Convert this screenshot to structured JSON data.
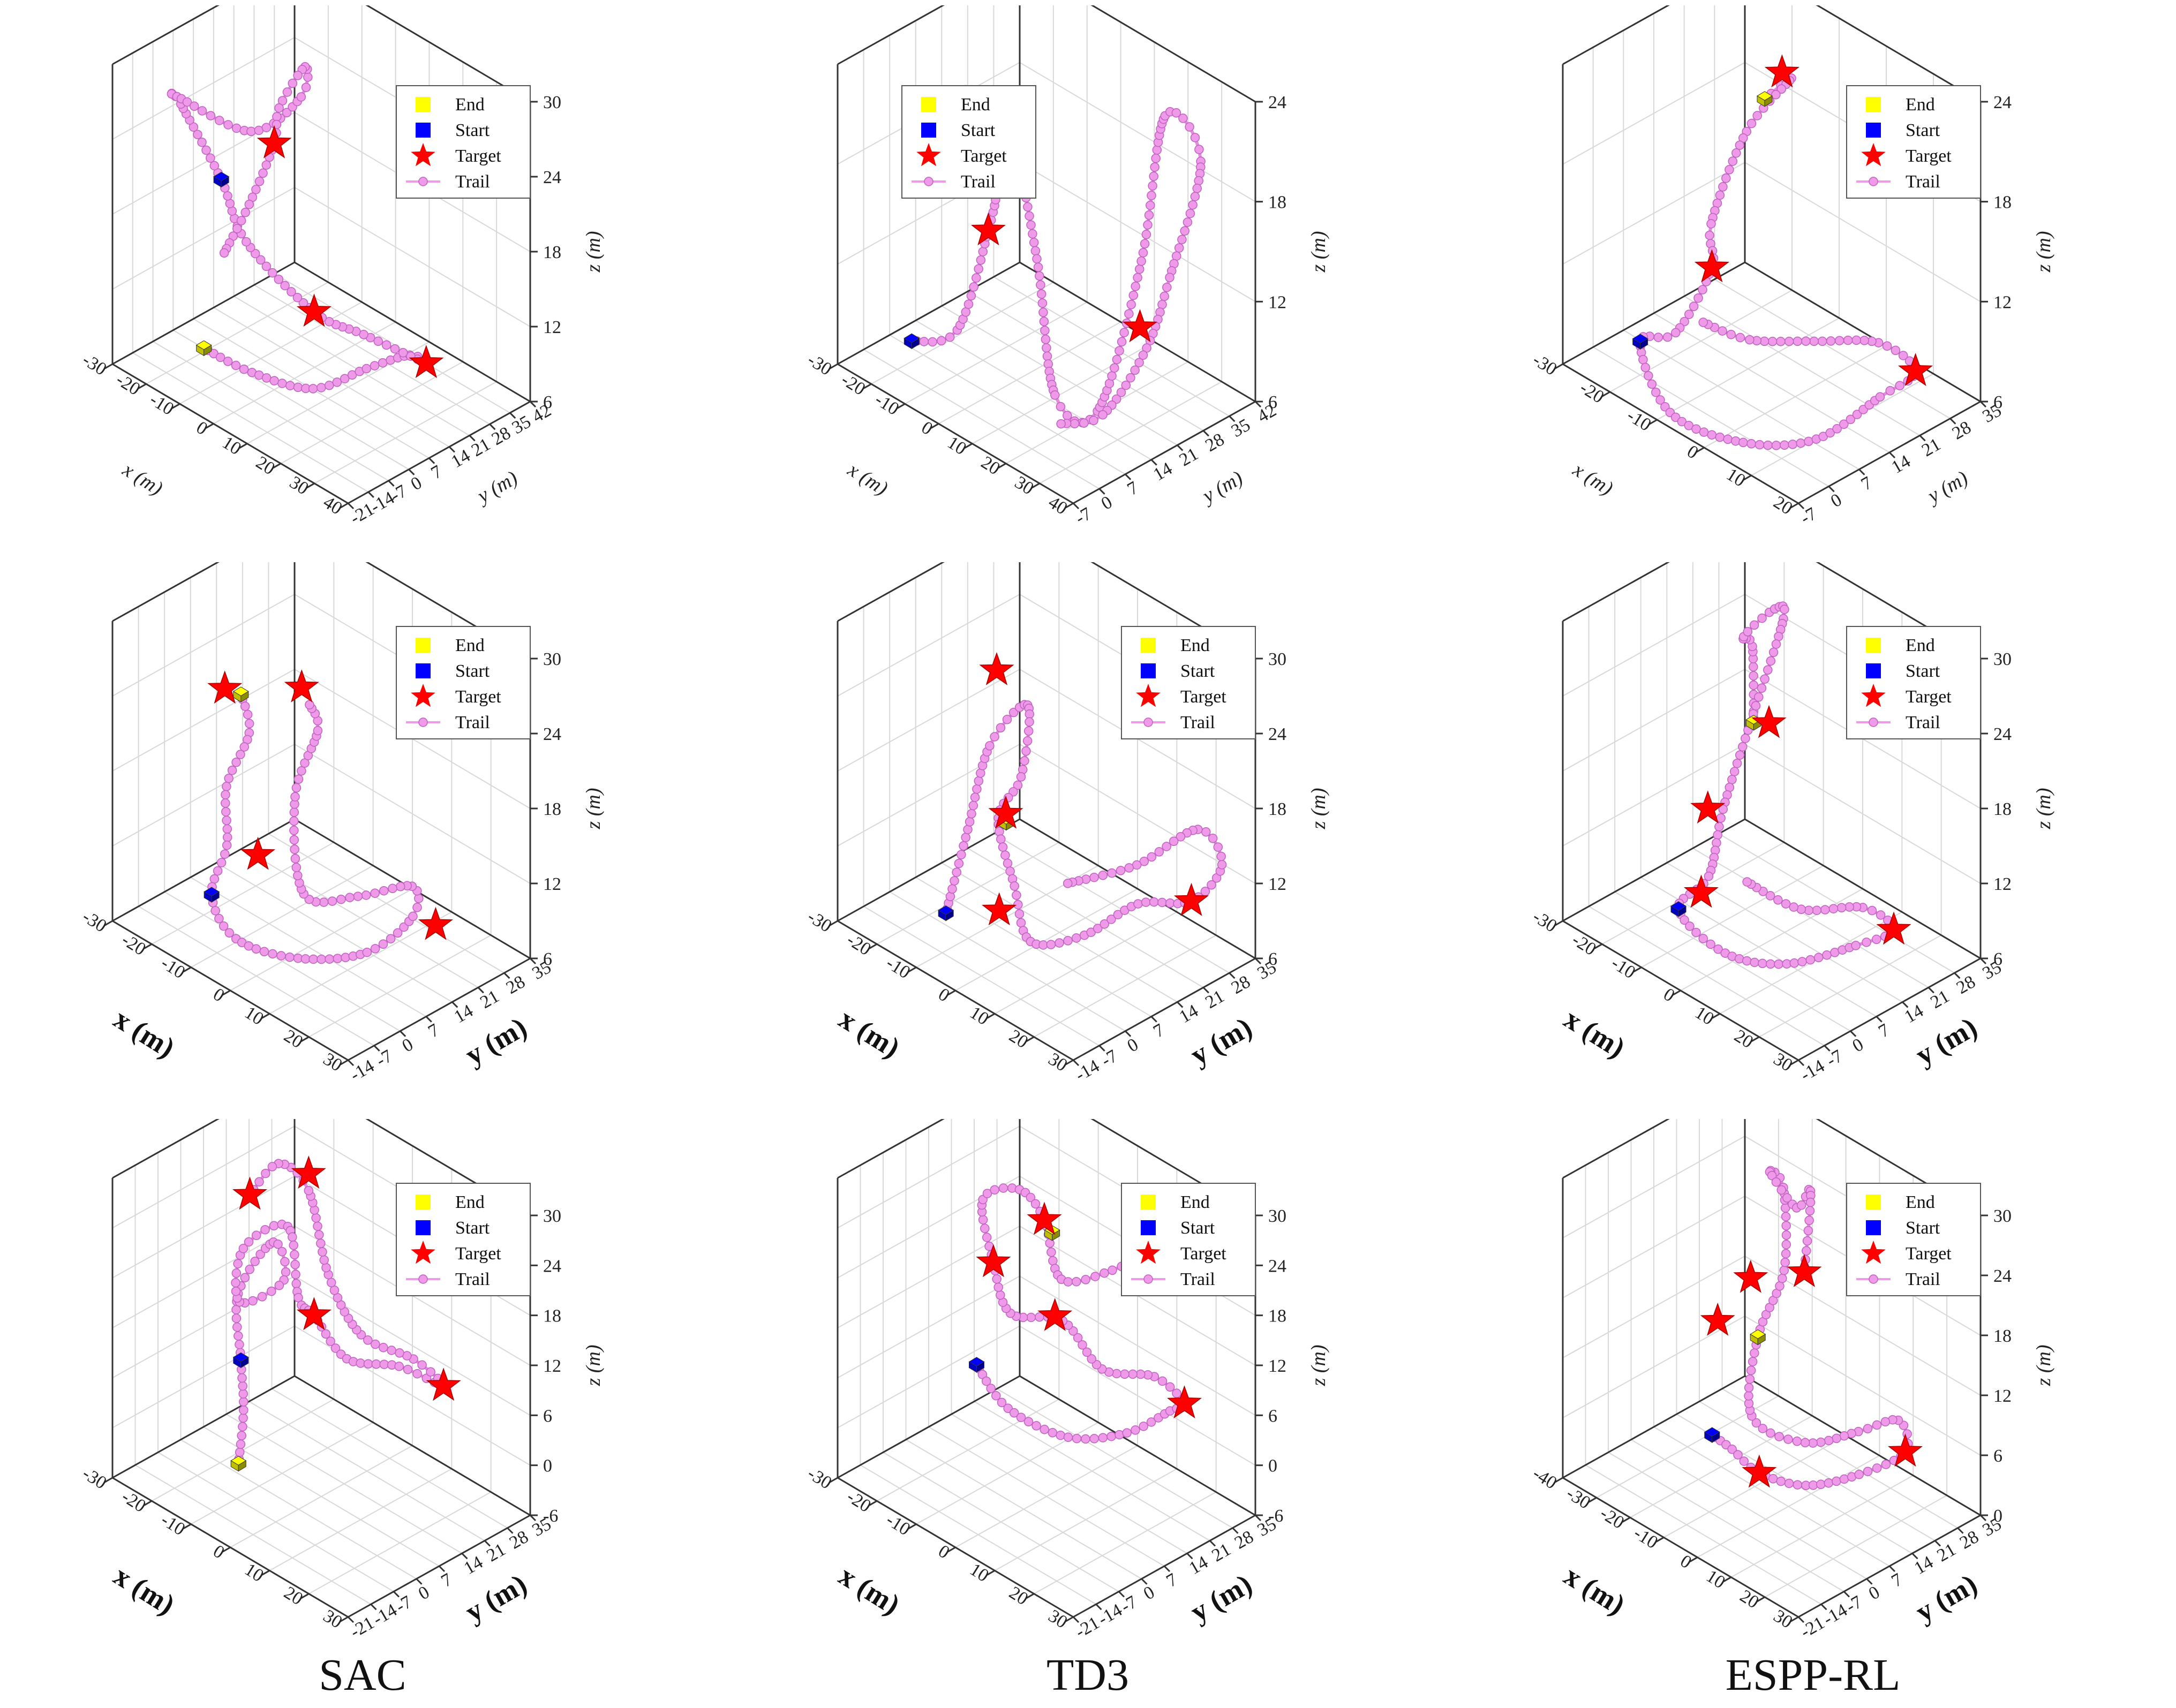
{
  "colors": {
    "trail": "#ee9ae8",
    "target": "#ff0000",
    "start": "#0000ff",
    "end": "#ffff00",
    "axis": "#333333",
    "grid": "#d8d8d8"
  },
  "legend": {
    "end": "End",
    "start": "Start",
    "target": "Target",
    "trail": "Trail"
  },
  "column_labels": [
    "SAC",
    "TD3",
    "ESPP-RL"
  ],
  "chart_data": [
    {
      "type": "scatter3d",
      "row": 0,
      "col": 0,
      "xlabel": "x (m)",
      "ylabel": "y (m)",
      "zlabel": "z (m)",
      "xticks": [
        "-30",
        "-20",
        "-10",
        "0",
        "10",
        "20",
        "30",
        "40"
      ],
      "yticks": [
        "-21",
        "-14",
        "-7",
        "0",
        "7",
        "14",
        "21",
        "28",
        "35",
        "42"
      ],
      "zticks": [
        "6",
        "12",
        "18",
        "24",
        "30"
      ],
      "xlim": [
        -30,
        40
      ],
      "ylim": [
        -21,
        42
      ],
      "zlim": [
        6,
        30
      ],
      "start": [
        -20,
        5,
        19
      ],
      "end": [
        -8,
        -15,
        10
      ],
      "targets": [
        [
          -12,
          14,
          22
        ],
        [
          5,
          8,
          12
        ],
        [
          28,
          20,
          10
        ]
      ],
      "trail": [
        [
          -8,
          -15,
          10
        ],
        [
          2,
          -10,
          9
        ],
        [
          15,
          -4,
          9
        ],
        [
          24,
          4,
          11
        ],
        [
          30,
          12,
          12
        ],
        [
          28,
          20,
          10
        ],
        [
          18,
          10,
          12
        ],
        [
          5,
          8,
          12
        ],
        [
          -10,
          2,
          16
        ],
        [
          -20,
          5,
          19
        ],
        [
          -26,
          -2,
          25
        ],
        [
          -22,
          -8,
          27
        ],
        [
          -12,
          6,
          24
        ],
        [
          -4,
          14,
          27
        ],
        [
          -8,
          20,
          28
        ],
        [
          -14,
          18,
          24
        ],
        [
          -12,
          14,
          22
        ],
        [
          -16,
          10,
          17
        ],
        [
          -20,
          6,
          13
        ]
      ],
      "legend_position": "top-right"
    },
    {
      "type": "scatter3d",
      "row": 0,
      "col": 1,
      "xlabel": "x (m)",
      "ylabel": "y (m)",
      "zlabel": "z (m)",
      "xticks": [
        "-30",
        "-20",
        "-10",
        "0",
        "10",
        "20",
        "30",
        "40"
      ],
      "yticks": [
        "-7",
        "0",
        "7",
        "14",
        "21",
        "28",
        "35",
        "42"
      ],
      "zticks": [
        "6",
        "12",
        "18",
        "24"
      ],
      "xlim": [
        -30,
        40
      ],
      "ylim": [
        -7,
        42
      ],
      "zlim": [
        6,
        24
      ],
      "start": [
        -8,
        -7,
        10
      ],
      "end": [
        -10,
        18,
        16
      ],
      "targets": [
        [
          -12,
          22,
          19
        ],
        [
          -4,
          10,
          15
        ],
        [
          30,
          20,
          12
        ]
      ],
      "trail": [
        [
          -8,
          -7,
          10
        ],
        [
          0,
          -2,
          11
        ],
        [
          -4,
          10,
          15
        ],
        [
          -10,
          18,
          16
        ],
        [
          -12,
          22,
          19
        ],
        [
          -18,
          16,
          21
        ],
        [
          -10,
          20,
          20
        ],
        [
          6,
          14,
          14
        ],
        [
          18,
          8,
          8
        ],
        [
          24,
          14,
          7
        ],
        [
          26,
          24,
          15
        ],
        [
          22,
          34,
          22
        ],
        [
          26,
          40,
          19
        ],
        [
          30,
          28,
          14
        ],
        [
          32,
          20,
          11
        ],
        [
          30,
          10,
          8
        ],
        [
          22,
          6,
          7
        ]
      ],
      "legend_position": "top-left"
    },
    {
      "type": "scatter3d",
      "row": 0,
      "col": 2,
      "xlabel": "x (m)",
      "ylabel": "y (m)",
      "zlabel": "z (m)",
      "xticks": [
        "-30",
        "-20",
        "-10",
        "0",
        "10",
        "20"
      ],
      "yticks": [
        "-7",
        "0",
        "7",
        "14",
        "21",
        "28",
        "35"
      ],
      "zticks": [
        "6",
        "12",
        "18",
        "24"
      ],
      "xlim": [
        -30,
        20
      ],
      "ylim": [
        -7,
        35
      ],
      "zlim": [
        6,
        24
      ],
      "start": [
        -20,
        0,
        8
      ],
      "end": [
        -12,
        20,
        21
      ],
      "targets": [
        [
          -12,
          24,
          22
        ],
        [
          -14,
          10,
          12
        ],
        [
          20,
          20,
          10
        ]
      ],
      "trail": [
        [
          -12,
          20,
          21
        ],
        [
          -10,
          24,
          22
        ],
        [
          -14,
          18,
          19
        ],
        [
          -16,
          12,
          14
        ],
        [
          -14,
          10,
          12
        ],
        [
          -18,
          6,
          8
        ],
        [
          -20,
          0,
          8
        ],
        [
          -10,
          -4,
          6
        ],
        [
          0,
          2,
          5
        ],
        [
          10,
          8,
          6
        ],
        [
          18,
          14,
          9
        ],
        [
          20,
          20,
          10
        ],
        [
          14,
          18,
          11
        ],
        [
          4,
          14,
          10
        ],
        [
          -6,
          10,
          9
        ],
        [
          -14,
          8,
          9
        ]
      ],
      "legend_position": "top-right"
    },
    {
      "type": "scatter3d",
      "row": 1,
      "col": 0,
      "xlabel": "x (m)",
      "ylabel": "y (m)",
      "zlabel": "z (m)",
      "xticks": [
        "-30",
        "-20",
        "-10",
        "0",
        "10",
        "20",
        "30"
      ],
      "yticks": [
        "-14",
        "-7",
        "0",
        "7",
        "14",
        "21",
        "28",
        "35"
      ],
      "zticks": [
        "6",
        "12",
        "18",
        "24",
        "30"
      ],
      "xlim": [
        -30,
        30
      ],
      "ylim": [
        -14,
        35
      ],
      "zlim": [
        6,
        30
      ],
      "start": [
        -18,
        0,
        8
      ],
      "end": [
        -20,
        10,
        22
      ],
      "targets": [
        [
          -26,
          12,
          21
        ],
        [
          -14,
          20,
          22
        ],
        [
          -10,
          4,
          12
        ],
        [
          22,
          18,
          10
        ]
      ],
      "trail": [
        [
          -20,
          10,
          22
        ],
        [
          -16,
          8,
          20
        ],
        [
          -18,
          4,
          16
        ],
        [
          -16,
          2,
          12
        ],
        [
          -18,
          0,
          8
        ],
        [
          -8,
          -4,
          7
        ],
        [
          4,
          0,
          7
        ],
        [
          14,
          8,
          8
        ],
        [
          20,
          14,
          11
        ],
        [
          16,
          18,
          12
        ],
        [
          6,
          14,
          10
        ],
        [
          -4,
          10,
          9
        ],
        [
          -10,
          14,
          15
        ],
        [
          -8,
          18,
          20
        ],
        [
          -12,
          20,
          21
        ]
      ],
      "legend_position": "top-right"
    },
    {
      "type": "scatter3d",
      "row": 1,
      "col": 1,
      "xlabel": "x (m)",
      "ylabel": "y (m)",
      "zlabel": "z (m)",
      "xticks": [
        "-30",
        "-20",
        "-10",
        "0",
        "10",
        "20",
        "30"
      ],
      "yticks": [
        "-14",
        "-7",
        "0",
        "7",
        "14",
        "21",
        "28",
        "35"
      ],
      "zticks": [
        "6",
        "12",
        "18",
        "24",
        "30"
      ],
      "xlim": [
        -30,
        30
      ],
      "ylim": [
        -14,
        35
      ],
      "zlim": [
        6,
        30
      ],
      "start": [
        -10,
        -6,
        9
      ],
      "end": [
        -6,
        6,
        15
      ],
      "targets": [
        [
          -16,
          14,
          24
        ],
        [
          -8,
          8,
          15
        ],
        [
          -4,
          2,
          9
        ],
        [
          26,
          22,
          12
        ]
      ],
      "trail": [
        [
          -10,
          -6,
          9
        ],
        [
          -12,
          2,
          14
        ],
        [
          -14,
          10,
          19
        ],
        [
          -10,
          16,
          22
        ],
        [
          -6,
          10,
          18
        ],
        [
          -8,
          6,
          15
        ],
        [
          -2,
          4,
          11
        ],
        [
          4,
          2,
          8
        ],
        [
          12,
          8,
          9
        ],
        [
          20,
          14,
          12
        ],
        [
          26,
          22,
          12
        ],
        [
          30,
          26,
          15
        ],
        [
          22,
          28,
          16
        ],
        [
          14,
          20,
          13
        ],
        [
          4,
          12,
          11
        ]
      ],
      "legend_position": "top-right"
    },
    {
      "type": "scatter3d",
      "row": 1,
      "col": 2,
      "xlabel": "x (m)",
      "ylabel": "y (m)",
      "zlabel": "z (m)",
      "xticks": [
        "-30",
        "-20",
        "-10",
        "0",
        "10",
        "20",
        "30"
      ],
      "yticks": [
        "-14",
        "-7",
        "0",
        "7",
        "14",
        "21",
        "28",
        "35"
      ],
      "zticks": [
        "6",
        "12",
        "18",
        "24",
        "30"
      ],
      "xlim": [
        -30,
        30
      ],
      "ylim": [
        -14,
        35
      ],
      "zlim": [
        6,
        30
      ],
      "start": [
        -10,
        -4,
        9
      ],
      "end": [
        -6,
        12,
        22
      ],
      "targets": [
        [
          -4,
          14,
          22
        ],
        [
          -12,
          6,
          15
        ],
        [
          -8,
          0,
          10
        ],
        [
          24,
          18,
          10
        ]
      ],
      "trail": [
        [
          -6,
          12,
          22
        ],
        [
          -12,
          18,
          26
        ],
        [
          -18,
          22,
          25
        ],
        [
          -12,
          24,
          28
        ],
        [
          -6,
          20,
          29
        ],
        [
          -8,
          14,
          22
        ],
        [
          -10,
          8,
          15
        ],
        [
          -8,
          2,
          11
        ],
        [
          -10,
          -4,
          9
        ],
        [
          0,
          -2,
          7
        ],
        [
          10,
          4,
          7
        ],
        [
          20,
          12,
          9
        ],
        [
          24,
          18,
          10
        ],
        [
          18,
          16,
          11
        ],
        [
          8,
          10,
          10
        ],
        [
          -2,
          6,
          11
        ]
      ],
      "legend_position": "top-right"
    },
    {
      "type": "scatter3d",
      "row": 2,
      "col": 0,
      "xlabel": "x (m)",
      "ylabel": "y (m)",
      "zlabel": "z (m)",
      "xticks": [
        "-30",
        "-20",
        "-10",
        "0",
        "10",
        "20",
        "30"
      ],
      "yticks": [
        "-21",
        "-14",
        "-7",
        "0",
        "7",
        "14",
        "21",
        "28",
        "35"
      ],
      "zticks": [
        "-6",
        "0",
        "6",
        "12",
        "18",
        "24",
        "30"
      ],
      "xlim": [
        -30,
        30
      ],
      "ylim": [
        -21,
        35
      ],
      "zlim": [
        -6,
        30
      ],
      "start": [
        -18,
        4,
        6
      ],
      "end": [
        -12,
        -4,
        -3
      ],
      "targets": [
        [
          -24,
          14,
          22
        ],
        [
          -14,
          20,
          26
        ],
        [
          -6,
          12,
          13
        ],
        [
          22,
          18,
          11
        ]
      ],
      "trail": [
        [
          -12,
          -4,
          -3
        ],
        [
          -14,
          0,
          2
        ],
        [
          -18,
          4,
          6
        ],
        [
          -22,
          8,
          12
        ],
        [
          -18,
          14,
          18
        ],
        [
          -12,
          10,
          16
        ],
        [
          -20,
          6,
          12
        ],
        [
          -24,
          12,
          16
        ],
        [
          -16,
          16,
          20
        ],
        [
          -10,
          12,
          14
        ],
        [
          -6,
          12,
          13
        ],
        [
          4,
          10,
          11
        ],
        [
          14,
          14,
          12
        ],
        [
          22,
          18,
          11
        ],
        [
          16,
          16,
          13
        ],
        [
          6,
          12,
          14
        ],
        [
          -4,
          14,
          18
        ],
        [
          -14,
          20,
          24
        ],
        [
          -20,
          18,
          26
        ],
        [
          -24,
          14,
          22
        ]
      ],
      "legend_position": "top-right"
    },
    {
      "type": "scatter3d",
      "row": 2,
      "col": 1,
      "xlabel": "x (m)",
      "ylabel": "y (m)",
      "zlabel": "z (m)",
      "xticks": [
        "-30",
        "-20",
        "-10",
        "0",
        "10",
        "20",
        "30"
      ],
      "yticks": [
        "-21",
        "-14",
        "-7",
        "0",
        "7",
        "14",
        "21",
        "28",
        "35"
      ],
      "zticks": [
        "-6",
        "0",
        "6",
        "12",
        "18",
        "24",
        "30"
      ],
      "xlim": [
        -30,
        30
      ],
      "ylim": [
        -21,
        35
      ],
      "zlim": [
        -6,
        30
      ],
      "start": [
        -12,
        0,
        8
      ],
      "end": [
        -6,
        16,
        22
      ],
      "targets": [
        [
          -8,
          16,
          23
        ],
        [
          -16,
          10,
          17
        ],
        [
          -2,
          12,
          14
        ],
        [
          26,
          18,
          10
        ]
      ],
      "trail": [
        [
          -12,
          0,
          8
        ],
        [
          -4,
          0,
          5
        ],
        [
          8,
          4,
          4
        ],
        [
          18,
          10,
          6
        ],
        [
          24,
          16,
          9
        ],
        [
          26,
          18,
          10
        ],
        [
          20,
          16,
          12
        ],
        [
          10,
          12,
          11
        ],
        [
          0,
          12,
          14
        ],
        [
          -10,
          8,
          13
        ],
        [
          -16,
          10,
          17
        ],
        [
          -22,
          14,
          22
        ],
        [
          -16,
          18,
          24
        ],
        [
          -8,
          16,
          23
        ],
        [
          -2,
          14,
          18
        ],
        [
          6,
          20,
          20
        ],
        [
          12,
          24,
          23
        ],
        [
          8,
          22,
          19
        ]
      ],
      "legend_position": "top-right"
    },
    {
      "type": "scatter3d",
      "row": 2,
      "col": 2,
      "xlabel": "x (m)",
      "ylabel": "y (m)",
      "zlabel": "z (m)",
      "xticks": [
        "-40",
        "-30",
        "-20",
        "-10",
        "0",
        "10",
        "20",
        "30"
      ],
      "yticks": [
        "-21",
        "-14",
        "-7",
        "0",
        "7",
        "14",
        "21",
        "28",
        "35"
      ],
      "zticks": [
        "0",
        "6",
        "12",
        "18",
        "24",
        "30"
      ],
      "xlim": [
        -40,
        30
      ],
      "ylim": [
        -21,
        35
      ],
      "zlim": [
        0,
        30
      ],
      "start": [
        -14,
        -2,
        6
      ],
      "end": [
        -12,
        10,
        14
      ],
      "targets": [
        [
          -18,
          14,
          18
        ],
        [
          -22,
          8,
          14
        ],
        [
          -4,
          16,
          21
        ],
        [
          0,
          -2,
          5
        ],
        [
          26,
          16,
          9
        ]
      ],
      "trail": [
        [
          -14,
          -2,
          6
        ],
        [
          -10,
          0,
          5
        ],
        [
          0,
          -2,
          5
        ],
        [
          10,
          2,
          5
        ],
        [
          20,
          8,
          7
        ],
        [
          26,
          16,
          9
        ],
        [
          22,
          18,
          11
        ],
        [
          14,
          14,
          9
        ],
        [
          4,
          8,
          7
        ],
        [
          -8,
          4,
          8
        ],
        [
          -12,
          10,
          14
        ],
        [
          -10,
          16,
          20
        ],
        [
          -16,
          22,
          26
        ],
        [
          -22,
          24,
          26
        ],
        [
          -14,
          24,
          24
        ],
        [
          -6,
          20,
          28
        ],
        [
          -4,
          16,
          21
        ]
      ],
      "legend_position": "top-right"
    }
  ]
}
